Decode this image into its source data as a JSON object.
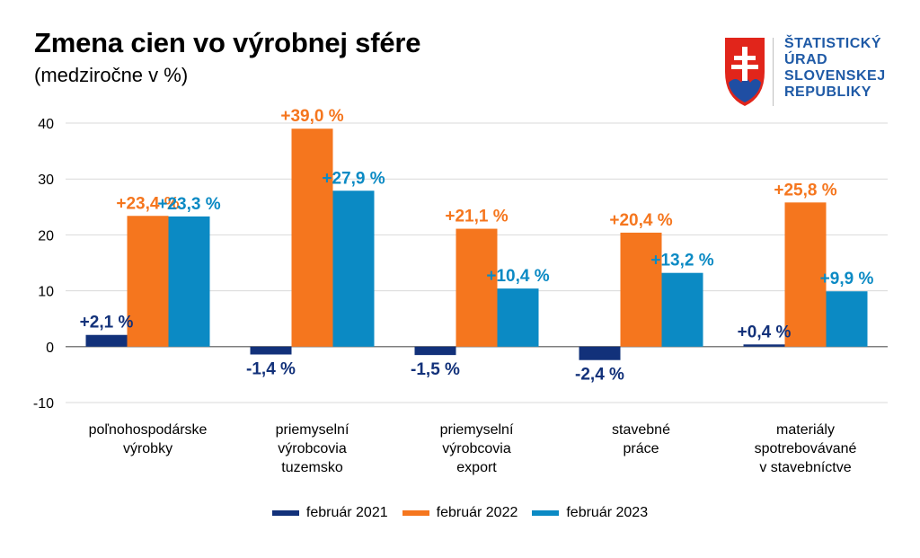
{
  "header": {
    "title": "Zmena cien vo výrobnej sfére",
    "subtitle": "(medziročne v %)"
  },
  "logo": {
    "lines": [
      "ŠTATISTICKÝ",
      "ÚRAD",
      "SLOVENSKEJ",
      "REPUBLIKY"
    ],
    "text_color": "#1f5aa6"
  },
  "chart_data": {
    "type": "bar",
    "title": "Zmena cien vo výrobnej sfére",
    "subtitle": "(medziročne v %)",
    "xlabel": "",
    "ylabel": "",
    "ylim": [
      -10,
      40
    ],
    "yticks": [
      40,
      30,
      20,
      10,
      0,
      -10
    ],
    "grid": true,
    "legend_position": "bottom",
    "categories": [
      [
        "poľnohospodárske",
        "výrobky"
      ],
      [
        "priemyselní",
        "výrobcovia",
        "tuzemsko"
      ],
      [
        "priemyselní",
        "výrobcovia",
        "export"
      ],
      [
        "stavebné",
        "práce"
      ],
      [
        "materiály",
        "spotrebovávané",
        "v stavebníctve"
      ]
    ],
    "series": [
      {
        "name": "február 2021",
        "color": "#12317a",
        "values": [
          2.1,
          -1.4,
          -1.5,
          -2.4,
          0.4
        ],
        "labels": [
          "+2,1 %",
          "-1,4 %",
          "-1,5 %",
          "-2,4 %",
          "+0,4 %"
        ]
      },
      {
        "name": "február 2022",
        "color": "#f5761e",
        "values": [
          23.4,
          39.0,
          21.1,
          20.4,
          25.8
        ],
        "labels": [
          "+23,4 %",
          "+39,0 %",
          "+21,1 %",
          "+20,4 %",
          "+25,8 %"
        ]
      },
      {
        "name": "február 2023",
        "color": "#0b8ac4",
        "values": [
          23.3,
          27.9,
          10.4,
          13.2,
          9.9
        ],
        "labels": [
          "+23,3 %",
          "+27,9 %",
          "+10,4 %",
          "+13,2 %",
          "+9,9 %"
        ]
      }
    ]
  }
}
